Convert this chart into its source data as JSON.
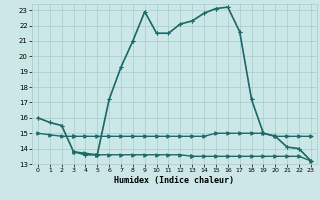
{
  "xlabel": "Humidex (Indice chaleur)",
  "bg_color": "#cce8e6",
  "line_color": "#1a6b6b",
  "grid_color": "#aacccc",
  "xlim": [
    -0.5,
    23.5
  ],
  "ylim": [
    13,
    23.4
  ],
  "yticks": [
    13,
    14,
    15,
    16,
    17,
    18,
    19,
    20,
    21,
    22,
    23
  ],
  "xticks": [
    0,
    1,
    2,
    3,
    4,
    5,
    6,
    7,
    8,
    9,
    10,
    11,
    12,
    13,
    14,
    15,
    16,
    17,
    18,
    19,
    20,
    21,
    22,
    23
  ],
  "curve_solid_x": [
    0,
    1,
    2,
    3,
    4,
    5,
    6,
    7,
    8,
    9,
    10,
    11,
    12,
    13,
    14,
    15,
    16,
    17,
    18,
    19,
    20,
    21,
    22,
    23
  ],
  "curve_solid_y": [
    16.0,
    15.7,
    15.5,
    13.8,
    13.6,
    13.6,
    17.2,
    19.3,
    21.0,
    22.9,
    21.5,
    21.5,
    22.1,
    22.3,
    22.8,
    23.1,
    23.2,
    21.6,
    17.2,
    15.0,
    14.8,
    14.1,
    14.0,
    13.2
  ],
  "curve_dot_x": [
    0,
    1,
    2,
    3,
    4,
    5,
    6,
    7,
    8,
    9,
    10,
    11,
    12,
    13,
    14,
    15,
    16,
    17,
    18,
    19,
    20,
    21,
    22,
    23
  ],
  "curve_dot_y": [
    16.0,
    15.7,
    15.5,
    13.8,
    13.6,
    13.6,
    17.2,
    19.3,
    21.0,
    22.9,
    21.5,
    21.5,
    22.1,
    22.3,
    22.8,
    23.1,
    23.2,
    21.6,
    17.2,
    15.0,
    14.8,
    14.1,
    14.0,
    13.2
  ],
  "curve_flat1_x": [
    0,
    1,
    2,
    3,
    3,
    4,
    5,
    6,
    7,
    8,
    9,
    10,
    11,
    12,
    13,
    14,
    15,
    16,
    17,
    18,
    19,
    20,
    21,
    22,
    23
  ],
  "curve_flat1_y": [
    15.0,
    14.9,
    14.8,
    14.8,
    14.8,
    14.8,
    14.8,
    14.8,
    14.8,
    14.8,
    14.8,
    14.8,
    14.8,
    14.8,
    14.8,
    14.8,
    15.0,
    15.0,
    15.0,
    15.0,
    15.0,
    14.8,
    14.8,
    14.8,
    14.8
  ],
  "curve_flat2_x": [
    3,
    4,
    5,
    5,
    6,
    7,
    8,
    9,
    10,
    11,
    12,
    13,
    13,
    14,
    15,
    16,
    17,
    18,
    19,
    20,
    21,
    22,
    23
  ],
  "curve_flat2_y": [
    13.8,
    13.7,
    13.6,
    13.6,
    13.6,
    13.6,
    13.6,
    13.6,
    13.6,
    13.6,
    13.6,
    13.5,
    13.5,
    13.5,
    13.5,
    13.5,
    13.5,
    13.5,
    13.5,
    13.5,
    13.5,
    13.5,
    13.2
  ]
}
